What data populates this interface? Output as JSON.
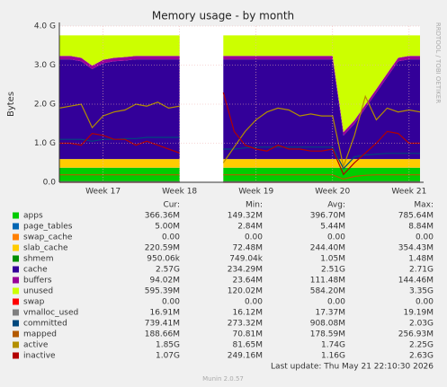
{
  "chart_data": {
    "type": "stacked-area",
    "title": "Memory usage - by month",
    "y_label": "Bytes",
    "side_note": "RRDTOOL / TOBI OETIKER",
    "footer": "Munin 2.0.57",
    "last_update": "Last update: Thu May 21 22:10:30 2026",
    "grid": true,
    "categories": [
      null,
      null,
      null,
      null,
      "Week 17",
      null,
      null,
      null,
      null,
      null,
      null,
      "Week 18",
      null,
      null,
      null,
      null,
      null,
      null,
      "Week 19",
      null,
      null,
      null,
      null,
      null,
      null,
      "Week 20",
      null,
      null,
      null,
      null,
      null,
      null,
      "Week 21",
      null
    ],
    "ylim": [
      0,
      4000000000.0
    ],
    "yticks": [
      {
        "value": 0,
        "label": "0.0"
      },
      {
        "value": 1000000000.0,
        "label": "1.0 G"
      },
      {
        "value": 2000000000.0,
        "label": "2.0 G"
      },
      {
        "value": 3000000000.0,
        "label": "3.0 G"
      },
      {
        "value": 4000000000.0,
        "label": "4.0 G"
      }
    ],
    "stats_headers": [
      "Cur:",
      "Min:",
      "Avg:",
      "Max:"
    ],
    "series": [
      {
        "name": "apps",
        "color": "#00cc00",
        "kind": "area",
        "stats": [
          "366.36M",
          "149.32M",
          "396.70M",
          "785.64M"
        ],
        "values": [
          370000000.0,
          370000000.0,
          370000000.0,
          370000000.0,
          370000000.0,
          370000000.0,
          370000000.0,
          370000000.0,
          370000000.0,
          370000000.0,
          370000000.0,
          370000000.0,
          null,
          null,
          null,
          370000000.0,
          370000000.0,
          370000000.0,
          370000000.0,
          370000000.0,
          370000000.0,
          370000000.0,
          370000000.0,
          370000000.0,
          370000000.0,
          370000000.0,
          370000000.0,
          370000000.0,
          370000000.0,
          370000000.0,
          370000000.0,
          370000000.0,
          370000000.0,
          370000000.0
        ]
      },
      {
        "name": "page_tables",
        "color": "#0066b3",
        "kind": "area",
        "stats": [
          "5.00M",
          "2.84M",
          "5.44M",
          "8.84M"
        ],
        "values": [
          5000000.0,
          5000000.0,
          5000000.0,
          5000000.0,
          5000000.0,
          5000000.0,
          5000000.0,
          5000000.0,
          5000000.0,
          5000000.0,
          5000000.0,
          5000000.0,
          null,
          null,
          null,
          5000000.0,
          5000000.0,
          5000000.0,
          5000000.0,
          5000000.0,
          5000000.0,
          5000000.0,
          5000000.0,
          5000000.0,
          5000000.0,
          5000000.0,
          5000000.0,
          5000000.0,
          5000000.0,
          5000000.0,
          5000000.0,
          5000000.0,
          5000000.0,
          5000000.0
        ]
      },
      {
        "name": "swap_cache",
        "color": "#ff8000",
        "kind": "area",
        "stats": [
          "0.00",
          "0.00",
          "0.00",
          "0.00"
        ],
        "values": [
          0,
          0,
          0,
          0,
          0,
          0,
          0,
          0,
          0,
          0,
          0,
          0,
          null,
          null,
          null,
          0,
          0,
          0,
          0,
          0,
          0,
          0,
          0,
          0,
          0,
          0,
          0,
          0,
          0,
          0,
          0,
          0,
          0,
          0
        ]
      },
      {
        "name": "slab_cache",
        "color": "#ffcc00",
        "kind": "area",
        "stats": [
          "220.59M",
          "72.48M",
          "244.40M",
          "354.43M"
        ],
        "values": [
          220000000.0,
          220000000.0,
          220000000.0,
          220000000.0,
          220000000.0,
          220000000.0,
          220000000.0,
          220000000.0,
          220000000.0,
          220000000.0,
          220000000.0,
          220000000.0,
          null,
          null,
          null,
          220000000.0,
          220000000.0,
          220000000.0,
          220000000.0,
          220000000.0,
          220000000.0,
          220000000.0,
          220000000.0,
          220000000.0,
          220000000.0,
          220000000.0,
          220000000.0,
          220000000.0,
          220000000.0,
          220000000.0,
          220000000.0,
          220000000.0,
          220000000.0,
          220000000.0
        ]
      },
      {
        "name": "shmem",
        "color": "#008f00",
        "kind": "area",
        "stats": [
          "950.06k",
          "749.04k",
          "1.05M",
          "1.48M"
        ],
        "values": [
          1000000.0,
          1000000.0,
          1000000.0,
          1000000.0,
          1000000.0,
          1000000.0,
          1000000.0,
          1000000.0,
          1000000.0,
          1000000.0,
          1000000.0,
          1000000.0,
          null,
          null,
          null,
          1000000.0,
          1000000.0,
          1000000.0,
          1000000.0,
          1000000.0,
          1000000.0,
          1000000.0,
          1000000.0,
          1000000.0,
          1000000.0,
          1000000.0,
          1000000.0,
          1000000.0,
          1000000.0,
          1000000.0,
          1000000.0,
          1000000.0,
          1000000.0,
          1000000.0
        ]
      },
      {
        "name": "cache",
        "color": "#330099",
        "kind": "area",
        "stats": [
          "2.57G",
          "234.29M",
          "2.51G",
          "2.71G"
        ],
        "values": [
          2550000000.0,
          2550000000.0,
          2500000000.0,
          2300000000.0,
          2450000000.0,
          2500000000.0,
          2520000000.0,
          2550000000.0,
          2550000000.0,
          2550000000.0,
          2550000000.0,
          2550000000.0,
          null,
          null,
          null,
          2550000000.0,
          2550000000.0,
          2550000000.0,
          2550000000.0,
          2550000000.0,
          2550000000.0,
          2550000000.0,
          2550000000.0,
          2550000000.0,
          2550000000.0,
          2550000000.0,
          600000000.0,
          900000000.0,
          1300000000.0,
          1700000000.0,
          2100000000.0,
          2500000000.0,
          2550000000.0,
          2550000000.0
        ]
      },
      {
        "name": "buffers",
        "color": "#990099",
        "kind": "area",
        "stats": [
          "94.02M",
          "23.64M",
          "111.48M",
          "144.46M"
        ],
        "values": [
          90000000.0,
          90000000.0,
          90000000.0,
          90000000.0,
          90000000.0,
          90000000.0,
          90000000.0,
          90000000.0,
          90000000.0,
          90000000.0,
          90000000.0,
          90000000.0,
          null,
          null,
          null,
          90000000.0,
          90000000.0,
          90000000.0,
          90000000.0,
          90000000.0,
          90000000.0,
          90000000.0,
          90000000.0,
          90000000.0,
          90000000.0,
          90000000.0,
          90000000.0,
          90000000.0,
          90000000.0,
          90000000.0,
          90000000.0,
          90000000.0,
          90000000.0,
          90000000.0
        ]
      },
      {
        "name": "unused",
        "color": "#ccff00",
        "kind": "area",
        "stats": [
          "595.39M",
          "120.02M",
          "584.20M",
          "3.35G"
        ],
        "values": [
          524000000.0,
          524000000.0,
          574000000.0,
          774000000.0,
          624000000.0,
          574000000.0,
          554000000.0,
          524000000.0,
          524000000.0,
          524000000.0,
          524000000.0,
          524000000.0,
          null,
          null,
          null,
          524000000.0,
          524000000.0,
          524000000.0,
          524000000.0,
          524000000.0,
          524000000.0,
          524000000.0,
          524000000.0,
          524000000.0,
          524000000.0,
          524000000.0,
          2474000000.0,
          2174000000.0,
          1774000000.0,
          1374000000.0,
          974000000.0,
          574000000.0,
          524000000.0,
          524000000.0
        ]
      },
      {
        "name": "swap",
        "color": "#ff0000",
        "kind": "line",
        "stats": [
          "0.00",
          "0.00",
          "0.00",
          "0.00"
        ],
        "values": [
          0,
          0,
          0,
          0,
          0,
          0,
          0,
          0,
          0,
          0,
          0,
          0,
          null,
          null,
          null,
          0,
          0,
          0,
          0,
          0,
          0,
          0,
          0,
          0,
          0,
          0,
          0,
          0,
          0,
          0,
          0,
          0,
          0,
          0
        ]
      },
      {
        "name": "vmalloc_used",
        "color": "#808080",
        "kind": "line",
        "stats": [
          "16.91M",
          "16.12M",
          "17.37M",
          "19.19M"
        ],
        "values": [
          17000000.0,
          17000000.0,
          17000000.0,
          17000000.0,
          17000000.0,
          17000000.0,
          17000000.0,
          17000000.0,
          17000000.0,
          17000000.0,
          17000000.0,
          17000000.0,
          null,
          null,
          null,
          17000000.0,
          17000000.0,
          17000000.0,
          17000000.0,
          17000000.0,
          17000000.0,
          17000000.0,
          17000000.0,
          17000000.0,
          17000000.0,
          17000000.0,
          17000000.0,
          17000000.0,
          17000000.0,
          17000000.0,
          17000000.0,
          17000000.0,
          17000000.0,
          17000000.0
        ]
      },
      {
        "name": "committed",
        "color": "#00487d",
        "kind": "line",
        "stats": [
          "739.41M",
          "273.32M",
          "908.08M",
          "2.03G"
        ],
        "values": [
          1100000000.0,
          1100000000.0,
          1100000000.0,
          1050000000.0,
          1100000000.0,
          1100000000.0,
          1120000000.0,
          1120000000.0,
          1150000000.0,
          1150000000.0,
          1150000000.0,
          1150000000.0,
          null,
          null,
          null,
          850000000.0,
          850000000.0,
          880000000.0,
          900000000.0,
          900000000.0,
          900000000.0,
          900000000.0,
          900000000.0,
          900000000.0,
          900000000.0,
          900000000.0,
          350000000.0,
          650000000.0,
          700000000.0,
          720000000.0,
          740000000.0,
          740000000.0,
          740000000.0,
          740000000.0
        ]
      },
      {
        "name": "mapped",
        "color": "#b35a00",
        "kind": "line",
        "stats": [
          "188.66M",
          "70.81M",
          "178.59M",
          "256.93M"
        ],
        "values": [
          190000000.0,
          190000000.0,
          190000000.0,
          190000000.0,
          190000000.0,
          190000000.0,
          190000000.0,
          190000000.0,
          190000000.0,
          190000000.0,
          190000000.0,
          190000000.0,
          null,
          null,
          null,
          190000000.0,
          190000000.0,
          190000000.0,
          190000000.0,
          190000000.0,
          190000000.0,
          190000000.0,
          190000000.0,
          190000000.0,
          190000000.0,
          190000000.0,
          80000000.0,
          150000000.0,
          180000000.0,
          190000000.0,
          190000000.0,
          190000000.0,
          190000000.0,
          190000000.0
        ]
      },
      {
        "name": "active",
        "color": "#b38f00",
        "kind": "line",
        "stats": [
          "1.85G",
          "81.65M",
          "1.74G",
          "2.25G"
        ],
        "values": [
          1900000000.0,
          1950000000.0,
          2000000000.0,
          1400000000.0,
          1700000000.0,
          1800000000.0,
          1850000000.0,
          2000000000.0,
          1950000000.0,
          2050000000.0,
          1900000000.0,
          1950000000.0,
          null,
          null,
          null,
          500000000.0,
          900000000.0,
          1300000000.0,
          1600000000.0,
          1800000000.0,
          1900000000.0,
          1850000000.0,
          1700000000.0,
          1750000000.0,
          1700000000.0,
          1700000000.0,
          400000000.0,
          1200000000.0,
          2200000000.0,
          1600000000.0,
          1900000000.0,
          1800000000.0,
          1850000000.0,
          1800000000.0
        ]
      },
      {
        "name": "inactive",
        "color": "#b30000",
        "kind": "line",
        "stats": [
          "1.07G",
          "249.16M",
          "1.16G",
          "2.63G"
        ],
        "values": [
          1000000000.0,
          1000000000.0,
          950000000.0,
          1250000000.0,
          1200000000.0,
          1100000000.0,
          1100000000.0,
          950000000.0,
          1050000000.0,
          950000000.0,
          850000000.0,
          750000000.0,
          null,
          null,
          null,
          2300000000.0,
          1300000000.0,
          950000000.0,
          850000000.0,
          800000000.0,
          950000000.0,
          850000000.0,
          850000000.0,
          800000000.0,
          800000000.0,
          850000000.0,
          200000000.0,
          500000000.0,
          750000000.0,
          1000000000.0,
          1300000000.0,
          1250000000.0,
          1000000000.0,
          1000000000.0
        ]
      }
    ]
  }
}
